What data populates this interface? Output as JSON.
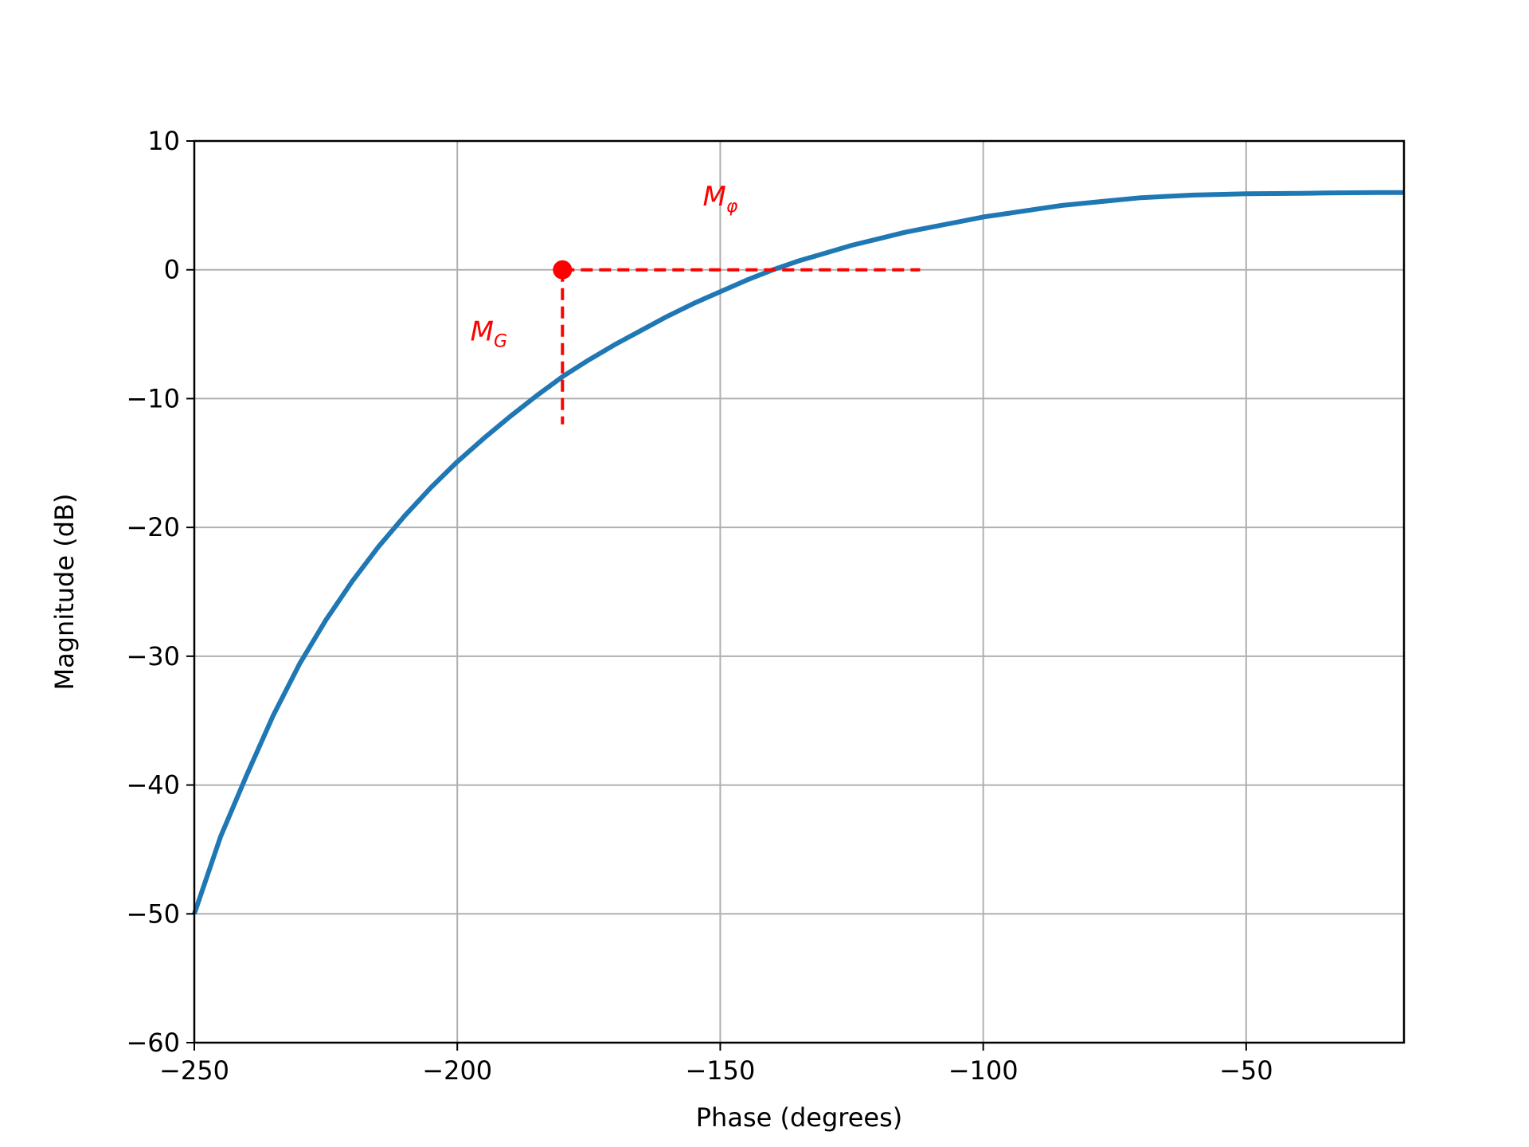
{
  "chart_data": {
    "type": "line",
    "title": "",
    "xlabel": "Phase (degrees)",
    "ylabel": "Magnitude (dB)",
    "xlim": [
      -250,
      -20
    ],
    "ylim": [
      -60,
      10
    ],
    "grid": true,
    "x_ticks": [
      -250,
      -200,
      -150,
      -100,
      -50
    ],
    "x_tick_labels": [
      "−250",
      "−200",
      "−150",
      "−100",
      "−50"
    ],
    "y_ticks": [
      10,
      0,
      -10,
      -20,
      -30,
      -40,
      -50,
      -60
    ],
    "y_tick_labels": [
      "10",
      "0",
      "−10",
      "−20",
      "−30",
      "−40",
      "−50",
      "−60"
    ],
    "series": [
      {
        "color": "#1f77b4",
        "x": [
          -250,
          -245,
          -240,
          -235,
          -230,
          -225,
          -220,
          -215,
          -210,
          -205,
          -200,
          -195,
          -190,
          -185,
          -180,
          -175,
          -170,
          -165,
          -160,
          -155,
          -150,
          -145,
          -140,
          -135,
          -130,
          -125,
          -120,
          -115,
          -110,
          -105,
          -100,
          -95,
          -90,
          -85,
          -80,
          -75,
          -70,
          -65,
          -60,
          -55,
          -50,
          -45,
          -40,
          -35,
          -30,
          -25,
          -20
        ],
        "y": [
          -50,
          -44,
          -39.2,
          -34.6,
          -30.6,
          -27.2,
          -24.2,
          -21.5,
          -19.1,
          -16.9,
          -14.9,
          -13.1,
          -11.4,
          -9.8,
          -8.3,
          -7,
          -5.8,
          -4.7,
          -3.6,
          -2.6,
          -1.7,
          -0.8,
          0,
          0.7,
          1.3,
          1.9,
          2.4,
          2.9,
          3.3,
          3.7,
          4.1,
          4.4,
          4.7,
          5,
          5.2,
          5.4,
          5.6,
          5.7,
          5.8,
          5.85,
          5.9,
          5.92,
          5.94,
          5.96,
          5.98,
          5.99,
          6
        ]
      }
    ],
    "annotations": {
      "color": "#ff0000",
      "point": {
        "x": -180,
        "y": 0
      },
      "phase_margin_line": {
        "x_start": -180,
        "x_end": -112,
        "y": 0
      },
      "gain_margin_line": {
        "x": -180,
        "y_start": 0,
        "y_end": -12
      },
      "phase_margin_label": {
        "main": "M",
        "sub": "φ",
        "x": -150,
        "y": 5
      },
      "gain_margin_label": {
        "main": "M",
        "sub": "G",
        "x": -194,
        "y": -5.5
      }
    }
  }
}
